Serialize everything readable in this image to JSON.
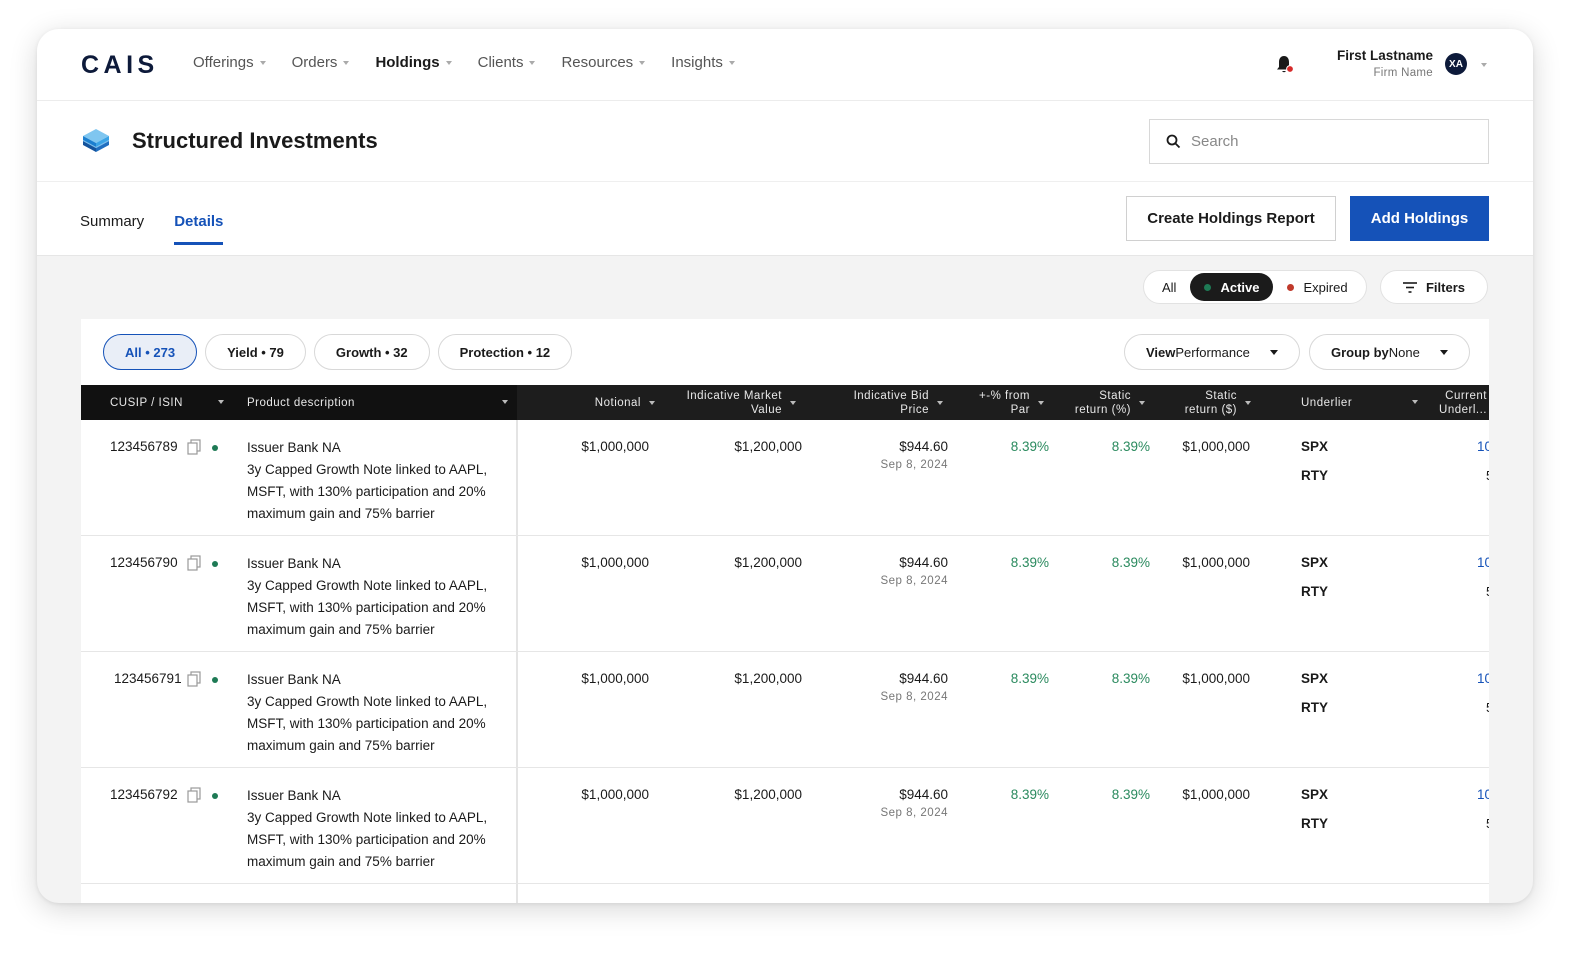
{
  "app": {
    "logo": "CAIS"
  },
  "nav": [
    {
      "label": "Offerings"
    },
    {
      "label": "Orders"
    },
    {
      "label": "Holdings"
    },
    {
      "label": "Clients"
    },
    {
      "label": "Resources"
    },
    {
      "label": "Insights"
    }
  ],
  "user": {
    "name": "First Lastname",
    "firm": "Firm Name",
    "initials": "XA"
  },
  "page": {
    "title": "Structured Investments"
  },
  "search": {
    "placeholder": "Search"
  },
  "tabs": [
    {
      "label": "Summary"
    },
    {
      "label": "Details"
    }
  ],
  "actions": {
    "report": "Create Holdings Report",
    "add": "Add Holdings"
  },
  "status_filter": {
    "all": "All",
    "active": "Active",
    "expired": "Expired",
    "filters": "Filters"
  },
  "colors": {
    "active_dot": "#1e7a55",
    "expired_dot": "#c0392b",
    "accent": "#1552b8",
    "notification": "#d62b2b"
  },
  "chips": [
    {
      "label": "All • 273"
    },
    {
      "label": "Yield • 79"
    },
    {
      "label": "Growth  • 32"
    },
    {
      "label": "Protection  • 12"
    }
  ],
  "dropdowns": {
    "performance": {
      "bold": "View",
      "rest": " Performance"
    },
    "group": {
      "bold": "Group by",
      "rest": " None"
    }
  },
  "columns": {
    "cusip": "CUSIP / ISIN",
    "product": "Product description",
    "notional": "Notional",
    "market_value_1": "Indicative Market",
    "market_value_2": "Value",
    "bid_1": "Indicative Bid",
    "bid_2": "Price",
    "par_1": "+-% from",
    "par_2": "Par",
    "ret_pct_1": "Static",
    "ret_pct_2": "return (%)",
    "ret_usd_1": "Static",
    "ret_usd_2": "return ($)",
    "underlier": "Underlier",
    "current_1": "Current",
    "current_2": "Underl..."
  },
  "rows": [
    {
      "cusip": "123456789",
      "issuer": "Issuer Bank NA",
      "desc": "3y Capped Growth Note linked to AAPL, MSFT, with 130% participation and 20% maximum gain and 75% barrier",
      "notional": "$1,000,000",
      "market_value": "$1,200,000",
      "bid": "$944.60",
      "bid_date": "Sep 8, 2024",
      "par": "8.39%",
      "ret_pct": "8.39%",
      "ret_usd": "$1,000,000",
      "und1": "SPX",
      "und2": "RTY",
      "cur1": "10",
      "cur2": "5"
    },
    {
      "cusip": "123456790",
      "issuer": "Issuer Bank NA",
      "desc": "3y Capped Growth Note linked to AAPL, MSFT, with 130% participation and 20% maximum gain and 75% barrier",
      "notional": "$1,000,000",
      "market_value": "$1,200,000",
      "bid": "$944.60",
      "bid_date": "Sep 8, 2024",
      "par": "8.39%",
      "ret_pct": "8.39%",
      "ret_usd": "$1,000,000",
      "und1": "SPX",
      "und2": "RTY",
      "cur1": "10",
      "cur2": "5"
    },
    {
      "cusip": "123456791",
      "issuer": "Issuer Bank NA",
      "desc": "3y Capped Growth Note linked to AAPL, MSFT, with 130% participation and 20% maximum gain and 75% barrier",
      "notional": "$1,000,000",
      "market_value": "$1,200,000",
      "bid": "$944.60",
      "bid_date": "Sep 8, 2024",
      "par": "8.39%",
      "ret_pct": "8.39%",
      "ret_usd": "$1,000,000",
      "und1": "SPX",
      "und2": "RTY",
      "cur1": "10",
      "cur2": "5"
    },
    {
      "cusip": "123456792",
      "issuer": "Issuer Bank NA",
      "desc": "3y Capped Growth Note linked to AAPL, MSFT, with 130% participation and 20% maximum gain and 75% barrier",
      "notional": "$1,000,000",
      "market_value": "$1,200,000",
      "bid": "$944.60",
      "bid_date": "Sep 8, 2024",
      "par": "8.39%",
      "ret_pct": "8.39%",
      "ret_usd": "$1,000,000",
      "und1": "SPX",
      "und2": "RTY",
      "cur1": "10",
      "cur2": "5"
    }
  ]
}
